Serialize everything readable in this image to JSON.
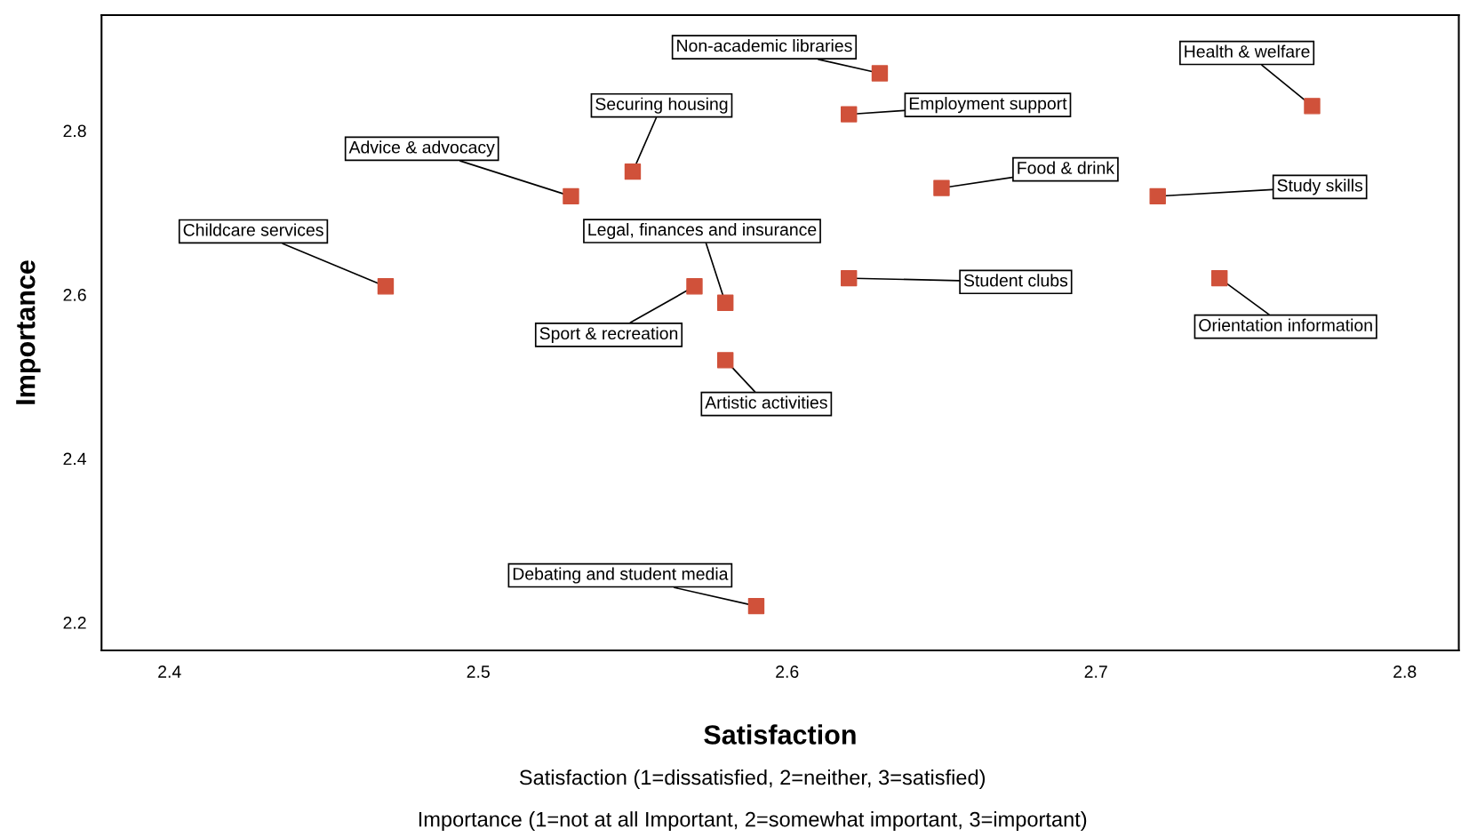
{
  "chart_data": {
    "type": "scatter",
    "xlabel": "Satisfaction",
    "ylabel": "Importance",
    "marker": "square",
    "grid": false,
    "xlim": [
      2.378,
      2.8175
    ],
    "ylim": [
      2.166,
      2.941
    ],
    "xticks": [
      2.4,
      2.5,
      2.6,
      2.7,
      2.8
    ],
    "yticks": [
      2.2,
      2.4,
      2.6,
      2.8
    ],
    "series": [
      {
        "color": "#d0513a",
        "x": [
          2.63,
          2.77,
          2.62,
          2.55,
          2.53,
          2.65,
          2.72,
          2.47,
          2.57,
          2.58,
          2.62,
          2.74,
          2.58,
          2.59
        ],
        "values": [
          2.87,
          2.83,
          2.82,
          2.75,
          2.72,
          2.73,
          2.72,
          2.61,
          2.61,
          2.59,
          2.62,
          2.62,
          2.52,
          2.22
        ]
      }
    ],
    "annotations": [
      {
        "text": "Non-academic libraries",
        "x": 2.63,
        "y": 2.87
      },
      {
        "text": "Health & welfare",
        "x": 2.77,
        "y": 2.83
      },
      {
        "text": "Employment support",
        "x": 2.62,
        "y": 2.82
      },
      {
        "text": "Securing housing",
        "x": 2.55,
        "y": 2.75
      },
      {
        "text": "Advice & advocacy",
        "x": 2.53,
        "y": 2.72
      },
      {
        "text": "Food & drink",
        "x": 2.65,
        "y": 2.73
      },
      {
        "text": "Study skills",
        "x": 2.72,
        "y": 2.72
      },
      {
        "text": "Childcare services",
        "x": 2.47,
        "y": 2.61
      },
      {
        "text": "Sport & recreation",
        "x": 2.57,
        "y": 2.61
      },
      {
        "text": "Legal, finances and insurance",
        "x": 2.58,
        "y": 2.59
      },
      {
        "text": "Student clubs",
        "x": 2.62,
        "y": 2.62
      },
      {
        "text": "Orientation information",
        "x": 2.74,
        "y": 2.62
      },
      {
        "text": "Artistic activities",
        "x": 2.58,
        "y": 2.52
      },
      {
        "text": "Debating and student media",
        "x": 2.59,
        "y": 2.22
      },
      "Satisfaction (1=dissatisfied, 2=neither, 3=satisfied)",
      "Importance (1=not at all Important, 2=somewhat important, 3=important)"
    ]
  }
}
